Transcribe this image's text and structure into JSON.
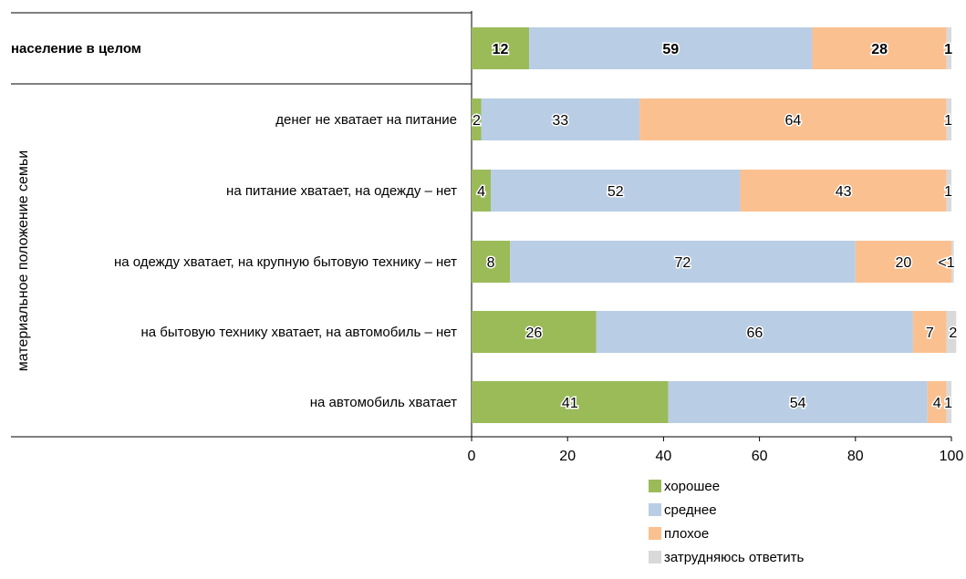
{
  "chart_data": {
    "type": "bar",
    "orientation": "horizontal",
    "stacked": true,
    "group_label": "материальное положение семьи",
    "categories": [
      "население в целом",
      "денег не хватает на питание",
      "на питание хватает, на одежду – нет",
      "на одежду хватает, на крупную бытовую технику – нет",
      "на бытовую технику хватает, на автомобиль – нет",
      "на автомобиль хватает"
    ],
    "bold_categories": [
      0
    ],
    "series": [
      {
        "name": "хорошее",
        "color": "#9bbb59",
        "values": [
          12,
          2,
          4,
          8,
          26,
          41
        ],
        "labels": [
          "12",
          "2",
          "4",
          "8",
          "26",
          "41"
        ]
      },
      {
        "name": "среднее",
        "color": "#b9cde5",
        "values": [
          59,
          33,
          52,
          72,
          66,
          54
        ],
        "labels": [
          "59",
          "33",
          "52",
          "72",
          "66",
          "54"
        ]
      },
      {
        "name": "плохое",
        "color": "#fac090",
        "values": [
          28,
          64,
          43,
          20,
          7,
          4
        ],
        "labels": [
          "28",
          "64",
          "43",
          "20",
          "7",
          "4"
        ]
      },
      {
        "name": "затрудняюсь ответить",
        "color": "#d9d9d9",
        "values": [
          1,
          1,
          1,
          0.5,
          2,
          1
        ],
        "labels": [
          "1",
          "1",
          "1",
          "<1",
          "2",
          "1"
        ]
      }
    ],
    "xlim": [
      0,
      100
    ],
    "xticks": [
      "0",
      "20",
      "40",
      "60",
      "80",
      "100"
    ],
    "grid": false,
    "legend_position": "bottom-right"
  }
}
